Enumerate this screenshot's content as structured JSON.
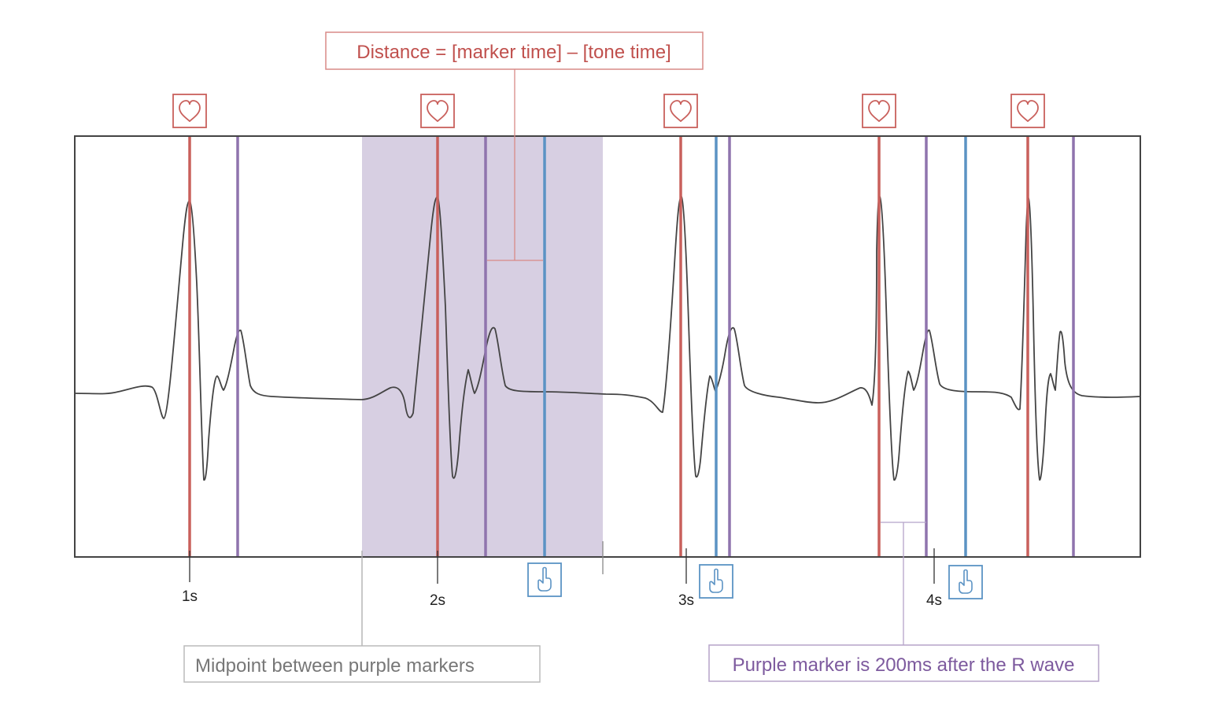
{
  "annotations": {
    "distance_formula": "Distance  = [marker time] – [tone time]",
    "midpoint_note": "Midpoint between purple markers",
    "purple_marker_note": "Purple marker is 200ms after the R wave"
  },
  "time_labels": [
    "1s",
    "2s",
    "3s",
    "4s"
  ],
  "icons": {
    "heartbeat": "heart-icon",
    "tap": "finger-tap-icon"
  },
  "colors": {
    "r_wave_marker": "#c9605c",
    "purple_marker": "#8f74ad",
    "tap_marker": "#5b93c4",
    "shaded_window": "#d7cfe2",
    "ecg_trace": "#444444",
    "distance_text": "#c0504d",
    "purple_text": "#7d5a9e",
    "gray_text": "#777777"
  }
}
